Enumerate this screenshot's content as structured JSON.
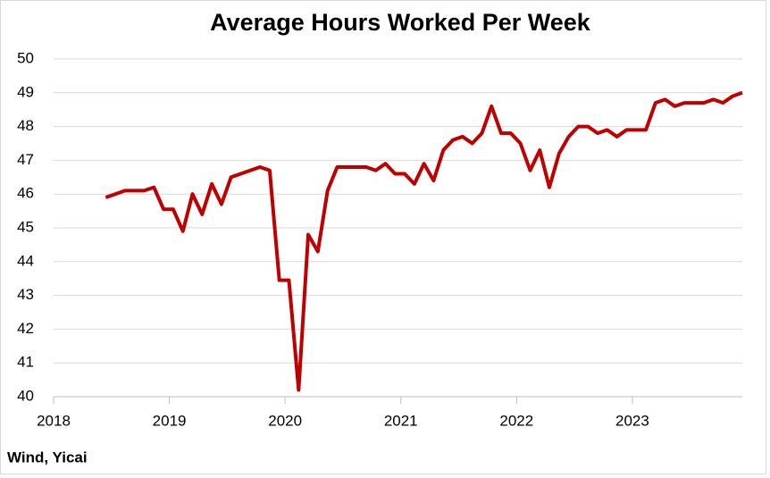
{
  "chart_data": {
    "type": "line",
    "title": "Average Hours Worked Per Week",
    "source": "Wind, Yicai",
    "x": [
      2018.45,
      2018.533,
      2018.617,
      2018.7,
      2018.783,
      2018.867,
      2018.95,
      2019.033,
      2019.117,
      2019.2,
      2019.283,
      2019.367,
      2019.45,
      2019.533,
      2019.617,
      2019.7,
      2019.783,
      2019.867,
      2019.95,
      2020.033,
      2020.117,
      2020.2,
      2020.283,
      2020.367,
      2020.45,
      2020.533,
      2020.617,
      2020.7,
      2020.783,
      2020.867,
      2020.95,
      2021.033,
      2021.117,
      2021.2,
      2021.283,
      2021.367,
      2021.45,
      2021.533,
      2021.617,
      2021.7,
      2021.783,
      2021.867,
      2021.95,
      2022.033,
      2022.117,
      2022.2,
      2022.283,
      2022.367,
      2022.45,
      2022.533,
      2022.617,
      2022.7,
      2022.783,
      2022.867,
      2022.95,
      2023.033,
      2023.117,
      2023.2,
      2023.283,
      2023.367,
      2023.45,
      2023.533,
      2023.617,
      2023.7,
      2023.783,
      2023.867,
      2023.95
    ],
    "series": [
      {
        "color": "#c00000",
        "values": [
          45.9,
          46.0,
          46.1,
          46.1,
          46.1,
          46.2,
          45.55,
          45.55,
          44.9,
          46.0,
          45.4,
          46.3,
          45.7,
          46.5,
          46.6,
          46.7,
          46.8,
          46.7,
          43.45,
          43.45,
          40.2,
          44.8,
          44.3,
          46.1,
          46.8,
          46.8,
          46.8,
          46.8,
          46.7,
          46.9,
          46.6,
          46.6,
          46.3,
          46.9,
          46.4,
          47.3,
          47.6,
          47.7,
          47.5,
          47.8,
          48.6,
          47.8,
          47.8,
          47.5,
          46.7,
          47.3,
          46.2,
          47.2,
          47.7,
          48.0,
          48.0,
          47.8,
          47.9,
          47.7,
          47.9,
          47.9,
          47.9,
          48.7,
          48.8,
          48.6,
          48.7,
          48.7,
          48.7,
          48.8,
          48.7,
          48.9,
          49.0
        ]
      }
    ],
    "xlim": [
      2018,
      2023.95
    ],
    "xticks": [
      2018,
      2019,
      2020,
      2021,
      2022,
      2023
    ],
    "ylim": [
      40,
      50
    ],
    "yticks": [
      40,
      41,
      42,
      43,
      44,
      45,
      46,
      47,
      48,
      49,
      50
    ],
    "grid": true
  }
}
